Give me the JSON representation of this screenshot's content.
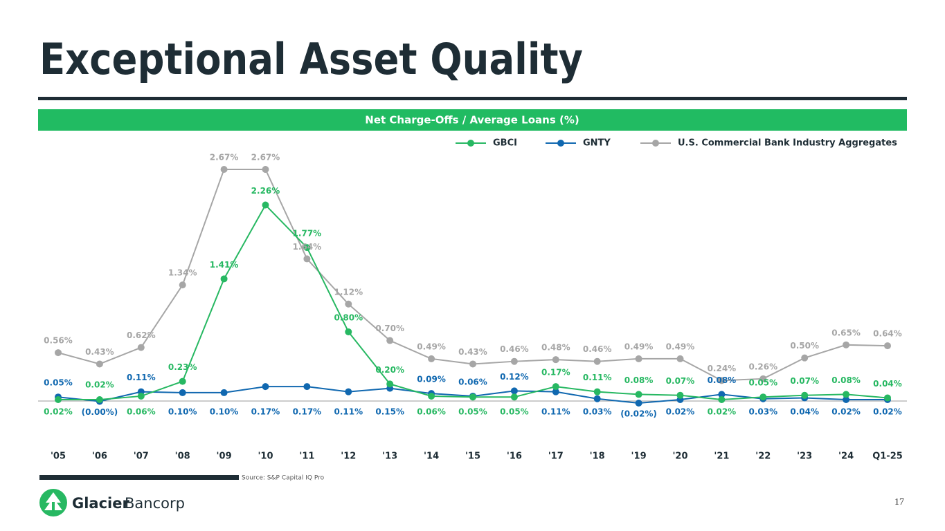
{
  "title": "Exceptional Asset Quality",
  "source": "Source: S&P Capital IQ Pro",
  "brand": {
    "name": "Glacier",
    "suffix": "Bancorp"
  },
  "page_number": "17",
  "chart_data": {
    "type": "line",
    "title": "Net Charge-Offs / Average Loans (%)",
    "categories": [
      "'05",
      "'06",
      "'07",
      "'08",
      "'09",
      "'10",
      "'11",
      "'12",
      "'13",
      "'14",
      "'15",
      "'16",
      "'17",
      "'18",
      "'19",
      "'20",
      "'21",
      "'22",
      "'23",
      "'24",
      "Q1-25"
    ],
    "series": [
      {
        "name": "GBCI",
        "color": "#27b862",
        "values": [
          0.02,
          0.02,
          0.06,
          0.23,
          1.41,
          2.26,
          1.77,
          0.8,
          0.2,
          0.06,
          0.05,
          0.05,
          0.17,
          0.11,
          0.08,
          0.07,
          0.02,
          0.05,
          0.07,
          0.08,
          0.04
        ],
        "value_labels": [
          "0.02%",
          "0.02%",
          "0.06%",
          "0.23%",
          "1.41%",
          "2.26%",
          "1.77%",
          "0.80%",
          "0.20%",
          "0.06%",
          "0.05%",
          "0.05%",
          "0.17%",
          "0.11%",
          "0.08%",
          "0.07%",
          "0.02%",
          "0.05%",
          "0.07%",
          "0.08%",
          "0.04%"
        ]
      },
      {
        "name": "GNTY",
        "color": "#1068b0",
        "values": [
          0.05,
          0,
          0.11,
          0.1,
          0.1,
          0.17,
          0.17,
          0.11,
          0.15,
          0.09,
          0.06,
          0.12,
          0.11,
          0.03,
          -0.02,
          0.02,
          0.08,
          0.03,
          0.04,
          0.02,
          0.02
        ],
        "value_labels": [
          "0.05%",
          "(0.00%)",
          "0.11%",
          "0.10%",
          "0.10%",
          "0.17%",
          "0.17%",
          "0.11%",
          "0.15%",
          "0.09%",
          "0.06%",
          "0.12%",
          "0.11%",
          "0.03%",
          "(0.02%)",
          "0.02%",
          "0.08%",
          "0.03%",
          "0.04%",
          "0.02%",
          "0.02%"
        ]
      },
      {
        "name": "U.S. Commercial Bank Industry Aggregates",
        "color": "#a6a6a6",
        "values": [
          0.56,
          0.43,
          0.62,
          1.34,
          2.67,
          2.67,
          1.64,
          1.12,
          0.7,
          0.49,
          0.43,
          0.46,
          0.48,
          0.46,
          0.49,
          0.49,
          0.24,
          0.26,
          0.5,
          0.65,
          0.64
        ],
        "value_labels": [
          "0.56%",
          "0.43%",
          "0.62%",
          "1.34%",
          "2.67%",
          "2.67%",
          "1.64%",
          "1.12%",
          "0.70%",
          "0.49%",
          "0.43%",
          "0.46%",
          "0.48%",
          "0.46%",
          "0.49%",
          "0.49%",
          "0.24%",
          "0.26%",
          "0.50%",
          "0.65%",
          "0.64%"
        ]
      }
    ]
  }
}
